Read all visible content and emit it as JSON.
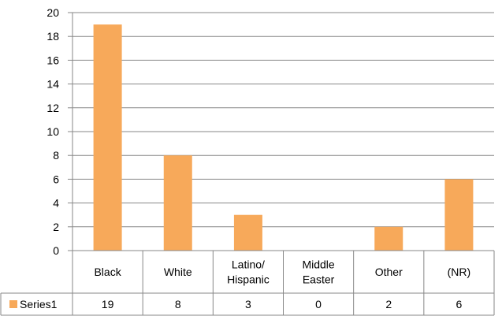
{
  "chart_data": {
    "type": "bar",
    "categories": [
      [
        "Black"
      ],
      [
        "White"
      ],
      [
        "Latino/",
        "Hispanic"
      ],
      [
        "Middle",
        "Easter"
      ],
      [
        "Other"
      ],
      [
        "(NR)"
      ]
    ],
    "series": [
      {
        "name": "Series1",
        "values": [
          19,
          8,
          3,
          0,
          2,
          6
        ],
        "value_labels": [
          "19",
          "8",
          "3",
          "0",
          "2",
          "6"
        ],
        "color": "#F7A95A"
      }
    ],
    "ylim": [
      0,
      20
    ],
    "yticks": [
      "0",
      "2",
      "4",
      "6",
      "8",
      "10",
      "12",
      "14",
      "16",
      "18",
      "20"
    ],
    "title": "",
    "xlabel": "",
    "ylabel": "",
    "grid": true,
    "legend": "data-table-left",
    "colors": {
      "grid": "#878787",
      "axis": "#878787",
      "bar": "#F7A95A"
    }
  }
}
